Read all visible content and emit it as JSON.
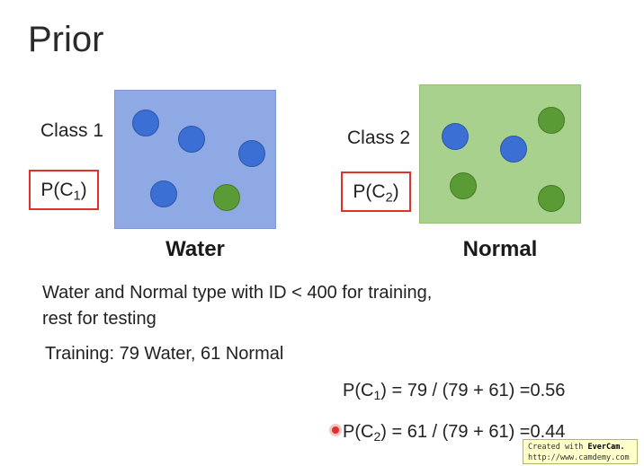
{
  "slide": {
    "title": "Prior",
    "class1": {
      "label": "Class 1",
      "prob_prefix": "P(C",
      "prob_sub": "1",
      "prob_suffix": ")",
      "caption": "Water",
      "panel_color": "#8fa9e4"
    },
    "class2": {
      "label": "Class 2",
      "prob_prefix": "P(C",
      "prob_sub": "2",
      "prob_suffix": ")",
      "caption": "Normal",
      "panel_color": "#a9d18e"
    },
    "description_line1": "Water and Normal type with ID < 400 for training,",
    "description_line2": "rest for testing",
    "training": "Training: 79 Water, 61 Normal",
    "formula1": {
      "prefix": "P(C",
      "sub": "1",
      "suffix": ") = 79 / (79 + 61) =0.56"
    },
    "formula2": {
      "prefix": "P(C",
      "sub": "2",
      "suffix": ") = 61 / (79 + 61) =0.44"
    }
  },
  "watermark": {
    "line1_prefix": "Created with ",
    "brand": "EverCam.",
    "line2": "http://www.camdemy.com"
  },
  "colors": {
    "box_border": "#e0312b",
    "dot_blue": "#3c6fd3",
    "dot_green": "#5a9b35"
  }
}
